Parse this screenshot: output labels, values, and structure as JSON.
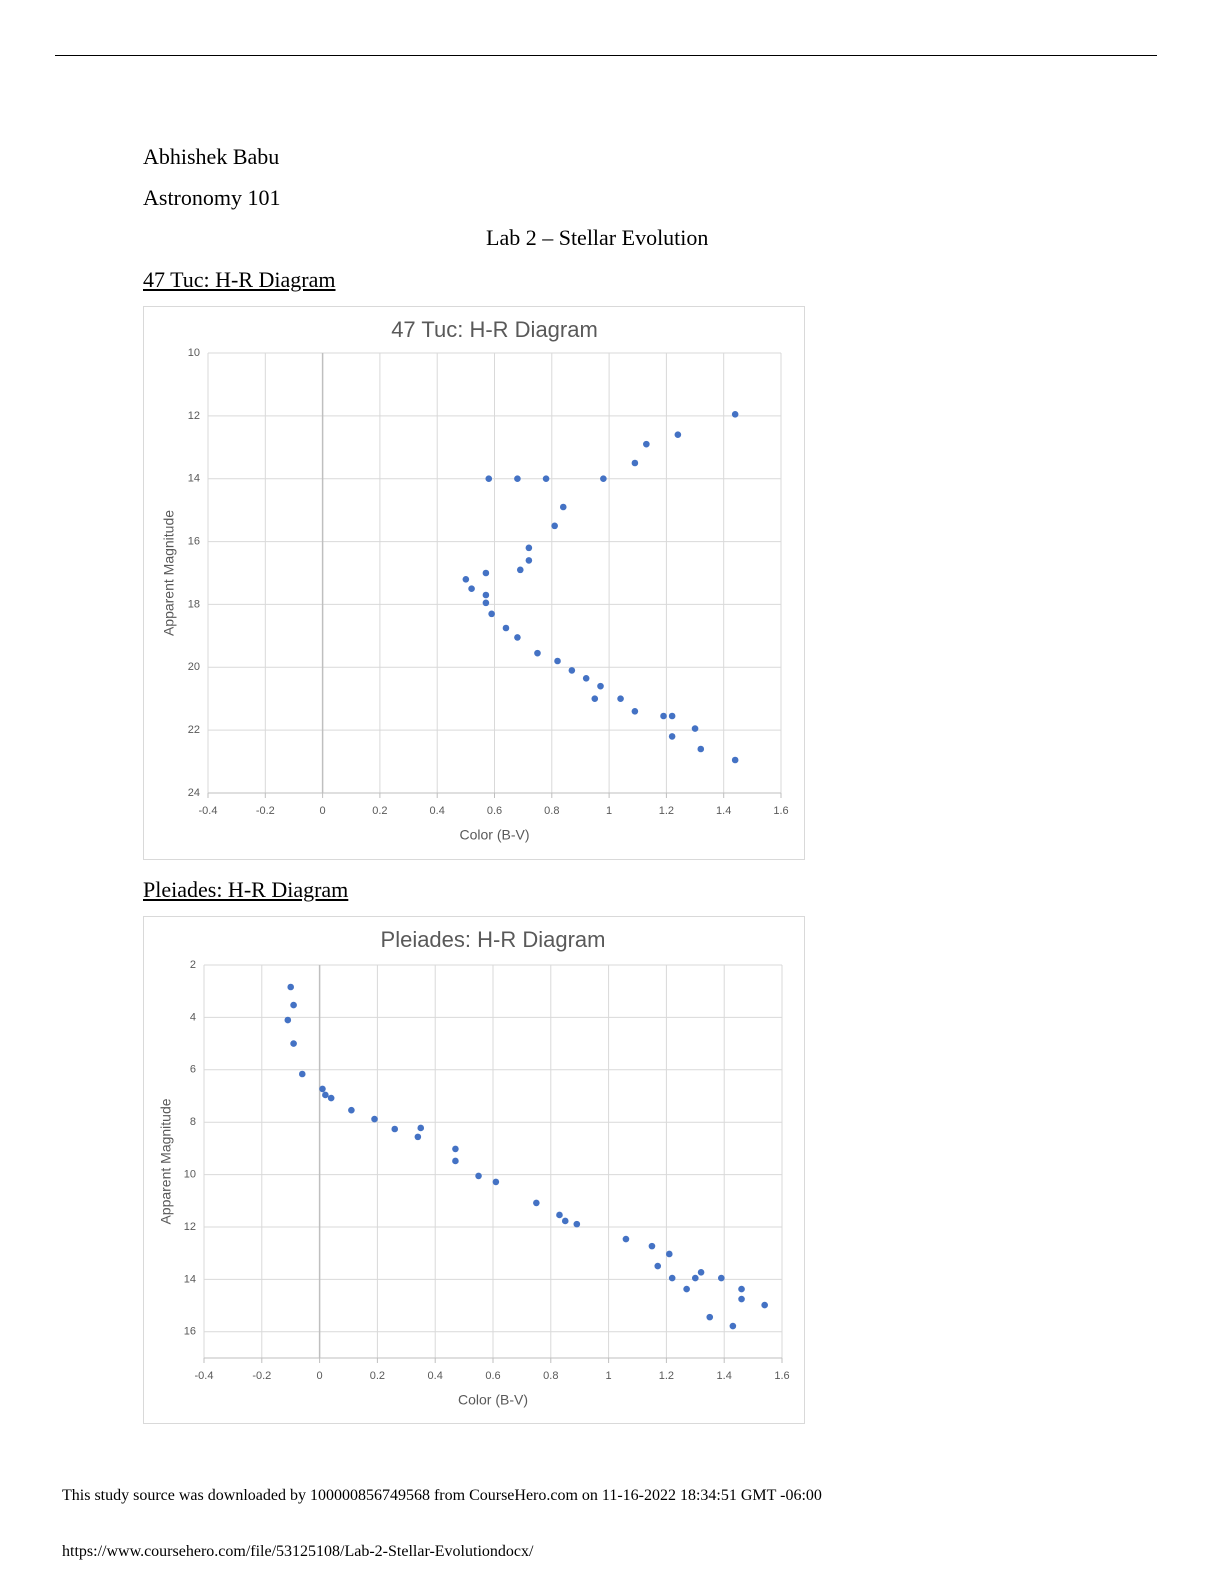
{
  "document": {
    "author": "Abhishek Babu",
    "course": "Astronomy 101",
    "title": "Lab 2 – Stellar Evolution",
    "sections": [
      {
        "heading": "47 Tuc: H-R Diagram"
      },
      {
        "heading": "Pleiades: H-R Diagram"
      }
    ],
    "footer": {
      "source": "This study source was downloaded by 100000856749568 from CourseHero.com on 11-16-2022 18:34:51 GMT -06:00",
      "url": "https://www.coursehero.com/file/53125108/Lab-2-Stellar-Evolutiondocx/"
    }
  },
  "chart_data": [
    {
      "type": "scatter",
      "title": "47 Tuc: H-R Diagram",
      "x_label": "Color (B-V)",
      "y_label": "Apparent Magnitude",
      "color": "#4472c4",
      "grid": true,
      "y_inverted": true,
      "xlim": [
        -0.4,
        1.6
      ],
      "xticks": [
        -0.4,
        -0.2,
        0,
        0.2,
        0.4,
        0.6,
        0.8,
        1,
        1.2,
        1.4,
        1.6
      ],
      "ylim": [
        10,
        24
      ],
      "yticks": [
        10,
        12,
        14,
        16,
        18,
        20,
        22,
        24
      ],
      "x": [
        1.44,
        1.24,
        1.13,
        1.09,
        0.58,
        0.68,
        0.78,
        0.98,
        0.84,
        0.81,
        0.72,
        0.72,
        0.69,
        0.57,
        0.5,
        0.52,
        0.57,
        0.57,
        0.59,
        0.64,
        0.68,
        0.75,
        0.82,
        0.87,
        0.92,
        0.97,
        0.95,
        1.04,
        1.09,
        1.19,
        1.22,
        1.3,
        1.22,
        1.32,
        1.44
      ],
      "values": [
        11.95,
        12.6,
        12.9,
        13.5,
        14.0,
        14.0,
        14.0,
        14.0,
        14.9,
        15.5,
        16.2,
        16.6,
        16.9,
        17.0,
        17.2,
        17.5,
        17.7,
        17.95,
        18.3,
        18.75,
        19.05,
        19.55,
        19.8,
        20.1,
        20.35,
        20.6,
        21.0,
        21.0,
        21.4,
        21.55,
        21.55,
        21.95,
        22.2,
        22.6,
        22.95
      ]
    },
    {
      "type": "scatter",
      "title": "Pleiades: H-R Diagram",
      "x_label": "Color (B-V)",
      "y_label": "Apparent Magnitude",
      "color": "#4472c4",
      "grid": true,
      "y_inverted": true,
      "xlim": [
        -0.4,
        1.6
      ],
      "xticks": [
        -0.4,
        -0.2,
        0,
        0.2,
        0.4,
        0.6,
        0.8,
        1,
        1.2,
        1.4,
        1.6
      ],
      "ylim": [
        2,
        17
      ],
      "yticks": [
        2,
        4,
        6,
        8,
        10,
        12,
        14,
        16
      ],
      "x": [
        -0.1,
        -0.09,
        -0.11,
        -0.09,
        -0.06,
        0.01,
        0.02,
        0.04,
        0.11,
        0.19,
        0.26,
        0.35,
        0.34,
        0.47,
        0.47,
        0.55,
        0.61,
        0.75,
        0.83,
        0.85,
        0.89,
        1.06,
        1.15,
        1.21,
        1.17,
        1.22,
        1.32,
        1.3,
        1.39,
        1.46,
        1.27,
        1.46,
        1.54,
        1.35,
        1.43
      ],
      "values": [
        2.84,
        3.53,
        4.1,
        5.0,
        6.16,
        6.73,
        6.96,
        7.08,
        7.54,
        7.88,
        8.26,
        8.22,
        8.56,
        9.02,
        9.48,
        10.05,
        10.28,
        11.08,
        11.54,
        11.77,
        11.89,
        12.46,
        12.73,
        13.03,
        13.49,
        13.95,
        13.73,
        13.95,
        13.95,
        14.37,
        14.37,
        14.75,
        14.98,
        15.44,
        15.78
      ]
    }
  ]
}
